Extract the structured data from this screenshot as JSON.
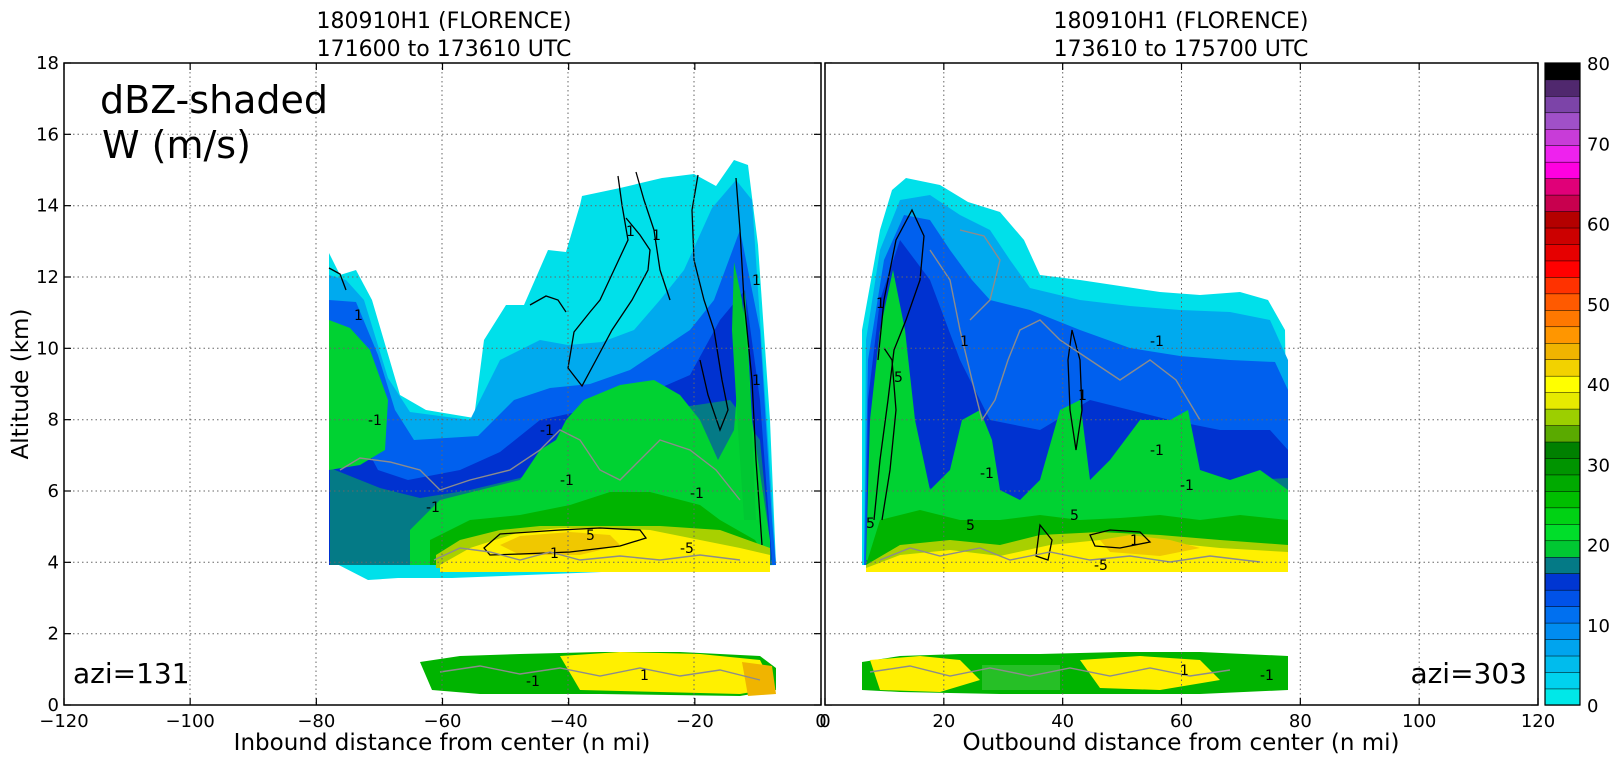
{
  "chart_data": [
    {
      "type": "heatmap",
      "title_line1": "180910H1 (FLORENCE)",
      "title_line2": "171600 to 173610 UTC",
      "xlabel": "Inbound distance from center (n mi)",
      "ylabel": "Altitude (km)",
      "xlim": [
        -120,
        0
      ],
      "ylim": [
        0,
        18
      ],
      "xticks": [
        "−120",
        "−100",
        "−80",
        "−60",
        "−40",
        "−20",
        "0"
      ],
      "yticks": [
        "0",
        "2",
        "4",
        "6",
        "8",
        "10",
        "12",
        "14",
        "16",
        "18"
      ],
      "annotation_line1": "dBZ-shaded",
      "annotation_line2": "W (m/s)",
      "azimuth_label": "azi=131",
      "contour_labels": [
        "1",
        "-1",
        "1",
        "-1",
        "1",
        "1",
        "1",
        "-1",
        "-1",
        "1",
        "-5",
        "-1",
        "1",
        "5",
        "-1"
      ],
      "grid": true
    },
    {
      "type": "heatmap",
      "title_line1": "180910H1 (FLORENCE)",
      "title_line2": "173610 to 175700 UTC",
      "xlabel": "Outbound distance from center (n mi)",
      "xlim": [
        0,
        120
      ],
      "ylim": [
        0,
        18
      ],
      "xticks": [
        "0",
        "20",
        "40",
        "60",
        "80",
        "100",
        "120"
      ],
      "azimuth_label": "azi=303",
      "contour_labels": [
        "1",
        "5",
        "1",
        "-1",
        "5",
        "-1",
        "1",
        "5",
        "1",
        "-1",
        "-5",
        "-1",
        "1",
        "5",
        "-1"
      ],
      "grid": true
    }
  ],
  "colorbar": {
    "ticks": [
      "0",
      "10",
      "20",
      "30",
      "40",
      "50",
      "60",
      "70",
      "80"
    ],
    "range": [
      0,
      80
    ],
    "colors": [
      "#00e8e8",
      "#00d2ee",
      "#00bced",
      "#00a4ee",
      "#008cf0",
      "#0070f0",
      "#0052e8",
      "#0036d2",
      "#047a86",
      "#00c832",
      "#00de2a",
      "#00d214",
      "#00be00",
      "#00aa00",
      "#009400",
      "#008000",
      "#5aaa00",
      "#9ccf00",
      "#e6ea00",
      "#ffff00",
      "#f2d200",
      "#f0b400",
      "#ff9600",
      "#ff7800",
      "#ff5a00",
      "#ff3200",
      "#ff0000",
      "#e60000",
      "#cc0000",
      "#b40000",
      "#c8004e",
      "#e00078",
      "#ff00e0",
      "#ee22ee",
      "#c83cd8",
      "#a050c8",
      "#7c44a8",
      "#50286e",
      "#000000"
    ]
  }
}
